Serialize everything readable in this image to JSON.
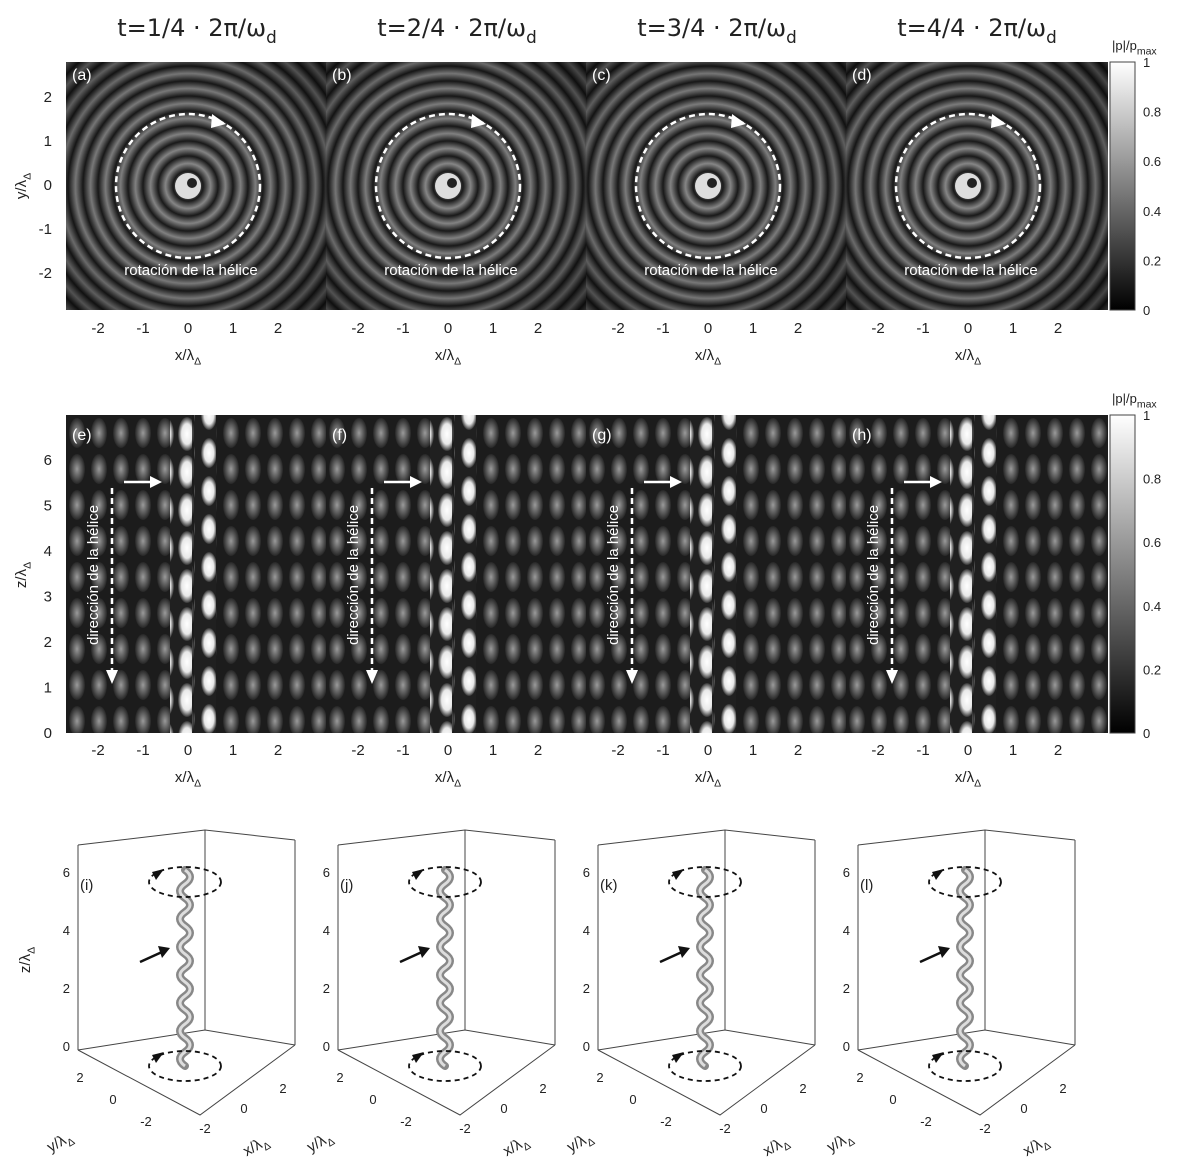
{
  "columns": [
    {
      "title": "t=1/4 · 2π/ω",
      "title_sub": "d"
    },
    {
      "title": "t=2/4 · 2π/ω",
      "title_sub": "d"
    },
    {
      "title": "t=3/4 · 2π/ω",
      "title_sub": "d"
    },
    {
      "title": "t=4/4 · 2π/ω",
      "title_sub": "d"
    }
  ],
  "row1": {
    "panels": [
      "(a)",
      "(b)",
      "(c)",
      "(d)"
    ],
    "annotation": "rotación de la hélice",
    "x_label": "x/λ",
    "x_label_sub": "Δ",
    "y_label": "y/λ",
    "y_label_sub": "Δ",
    "x_ticks": [
      "-2",
      "-1",
      "0",
      "1",
      "2"
    ],
    "y_ticks": [
      "2",
      "1",
      "0",
      "-1",
      "-2"
    ]
  },
  "row2": {
    "panels": [
      "(e)",
      "(f)",
      "(g)",
      "(h)"
    ],
    "annotation": "dirección de la hélice",
    "x_label": "x/λ",
    "x_label_sub": "Δ",
    "z_label": "z/λ",
    "z_label_sub": "Δ",
    "x_ticks": [
      "-2",
      "-1",
      "0",
      "1",
      "2"
    ],
    "z_ticks": [
      "6",
      "5",
      "4",
      "3",
      "2",
      "1",
      "0"
    ]
  },
  "row3": {
    "panels": [
      "(i)",
      "(j)",
      "(k)",
      "(l)"
    ],
    "z_label": "z/λ",
    "z_label_sub": "Δ",
    "y_label": "y/λ",
    "y_label_sub": "Δ",
    "x_label": "x/λ",
    "x_label_sub": "Δ",
    "z_ticks": [
      "6",
      "4",
      "2",
      "0"
    ],
    "y_ticks": [
      "2",
      "0",
      "-2"
    ],
    "x_ticks": [
      "-2",
      "0",
      "2"
    ]
  },
  "colorbars": [
    {
      "label": "|p|/p",
      "label_sub": "max",
      "ticks": [
        "1",
        "0.8",
        "0.6",
        "0.4",
        "0.2",
        "0"
      ]
    },
    {
      "label": "|p|/p",
      "label_sub": "max",
      "ticks": [
        "1",
        "0.8",
        "0.6",
        "0.4",
        "0.2",
        "0"
      ]
    }
  ]
}
